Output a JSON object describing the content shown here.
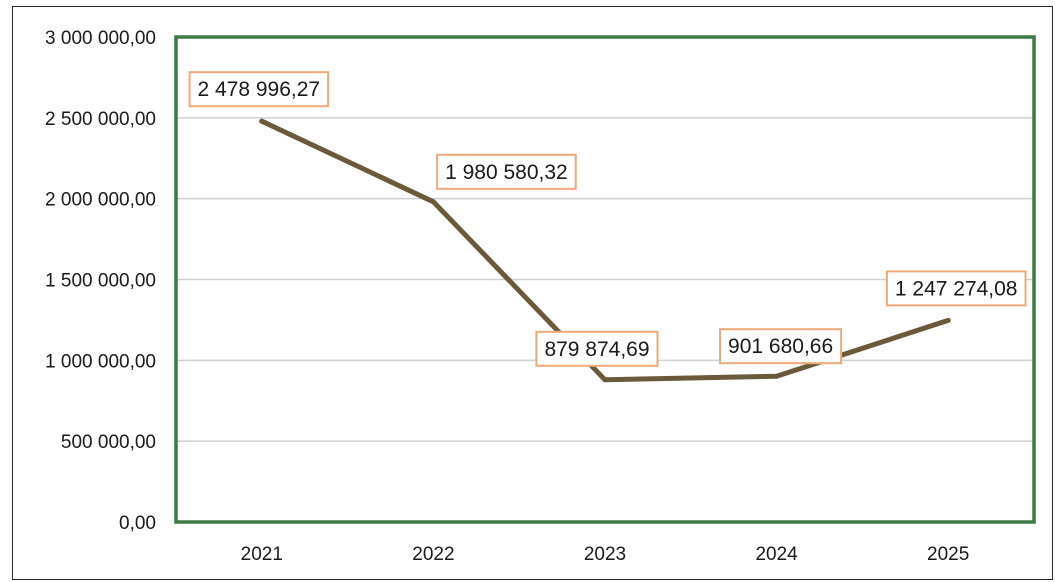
{
  "chart_data": {
    "type": "line",
    "title": "",
    "xlabel": "",
    "ylabel": "",
    "categories": [
      "2021",
      "2022",
      "2023",
      "2024",
      "2025"
    ],
    "series": [
      {
        "values": [
          2478996.27,
          1980580.32,
          879874.69,
          901680.66,
          1247274.08
        ],
        "data_labels": [
          "2 478 996,27",
          "1 980 580,32",
          "879 874,69",
          "901 680,66",
          "1 247 274,08"
        ]
      }
    ],
    "ylim": [
      0,
      3000000
    ],
    "y_ticks": [
      0,
      500000,
      1000000,
      1500000,
      2000000,
      2500000,
      3000000
    ],
    "y_tick_labels": [
      "0,00",
      "500 000,00",
      "1 000 000,00",
      "1 500 000,00",
      "2 000 000,00",
      "2 500 000,00",
      "3 000 000,00"
    ],
    "grid": true,
    "legend": "none",
    "colors": {
      "line": "#6b5a3a",
      "plot_border": "#3d7a45",
      "gridline": "#d0d0d0",
      "label_border": "#f0a878",
      "label_fill": "#ffffff"
    }
  }
}
